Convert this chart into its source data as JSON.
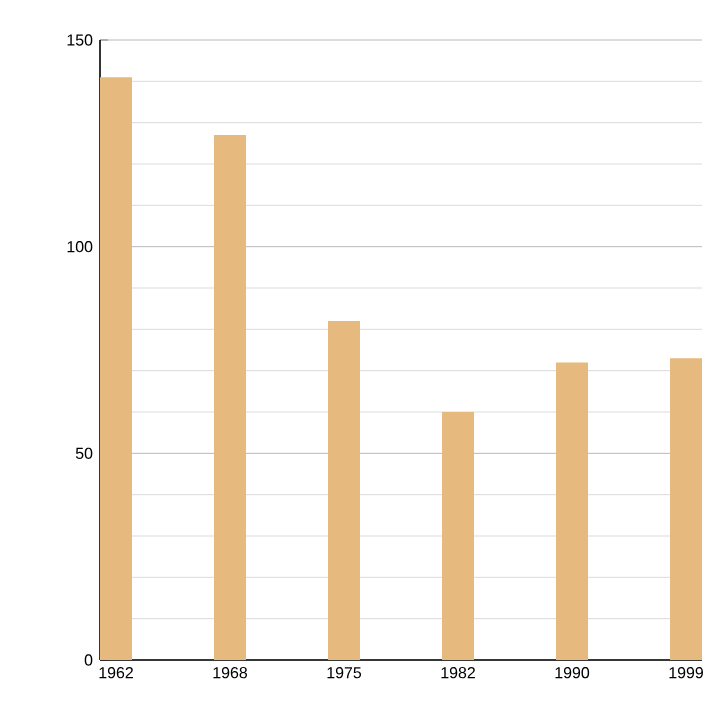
{
  "chart_data": {
    "type": "bar",
    "categories": [
      "1962",
      "1968",
      "1975",
      "1982",
      "1990",
      "1999"
    ],
    "values": [
      141,
      127,
      82,
      60,
      72,
      73
    ],
    "color": "#e6b97f",
    "ylim": [
      0,
      150
    ],
    "yticks": [
      0,
      50,
      100,
      150
    ],
    "grid": "y"
  }
}
